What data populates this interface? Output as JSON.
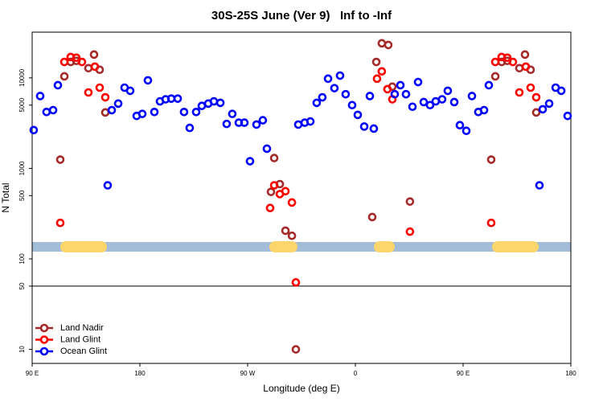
{
  "chart_data": {
    "type": "scatter",
    "title": "30S-25S June (Ver 9)   Inf to -Inf",
    "xlabel": "Longitude (deg E)",
    "ylabel": "N Total",
    "xlim": [
      90,
      540
    ],
    "xticks": [
      {
        "value": 90,
        "label": "90 E"
      },
      180,
      {
        "value": 270,
        "label": "90 W"
      },
      {
        "value": 360,
        "label": "0"
      },
      {
        "value": 450,
        "label": "90 E"
      },
      {
        "value": 540,
        "label": "180"
      }
    ],
    "ylim": [
      7,
      32000
    ],
    "log_y": true,
    "yticks": [
      10,
      50,
      100,
      500,
      1000,
      5000,
      10000
    ],
    "hline": 50,
    "legend": "bottom-left",
    "series": [
      {
        "name": "Land Nadir",
        "color": "#a52a2a",
        "x": [
          113.5,
          116.9,
          122.2,
          126.9,
          137,
          141.7,
          146.4,
          151.1,
          289.5,
          292.2,
          296.9,
          301.6,
          307,
          310.3,
          374.1,
          377.5,
          382.1,
          387.5,
          390.9,
          405.6,
          473.5,
          476.9,
          482.2,
          486.9,
          497,
          501.7,
          506.4,
          511.1
        ],
        "values": [
          1250,
          10400,
          15000,
          15400,
          12800,
          18100,
          12300,
          4150,
          550,
          1300,
          670,
          205,
          180,
          10,
          290,
          15000,
          24100,
          23100,
          8000,
          430,
          1250,
          10400,
          15000,
          15400,
          12800,
          18100,
          12300,
          4150
        ]
      },
      {
        "name": "Land Glint",
        "color": "#ff0000",
        "x": [
          113.5,
          116.9,
          122.2,
          126.9,
          131.6,
          137,
          142.4,
          146.4,
          151.1,
          288.8,
          292.2,
          296.9,
          301.6,
          307,
          310.3,
          378.1,
          382.1,
          386.8,
          390.9,
          405.6,
          473.5,
          476.9,
          482.2,
          486.9,
          491.6,
          497,
          502.4,
          506.4,
          511.1
        ],
        "values": [
          250,
          15000,
          17000,
          16700,
          15000,
          6900,
          13300,
          7800,
          6100,
          365,
          650,
          520,
          560,
          420,
          55,
          9800,
          11800,
          7500,
          5800,
          200,
          250,
          15000,
          17000,
          16700,
          15000,
          6900,
          13300,
          7800,
          6100
        ]
      },
      {
        "name": "Ocean Glint",
        "color": "#0000ff",
        "x": [
          91.3,
          96.7,
          102,
          107.5,
          111.5,
          153.1,
          156.5,
          161.9,
          167.2,
          171.9,
          177.3,
          182,
          186.7,
          192.1,
          196.8,
          201.5,
          206.2,
          211.6,
          216.9,
          221.6,
          227,
          231.7,
          237.1,
          241.8,
          247.2,
          252.5,
          257.2,
          262.6,
          267.3,
          272,
          277.4,
          282.7,
          286.1,
          312.3,
          317.7,
          322.4,
          327.7,
          332.4,
          337.2,
          342.5,
          347.2,
          351.9,
          357.3,
          362,
          367.4,
          372.1,
          375.4,
          392.9,
          397.6,
          402.3,
          407.7,
          412.4,
          417.1,
          422.4,
          427.1,
          432.5,
          437.2,
          442.6,
          447.3,
          452.7,
          457.4,
          462.7,
          467.5,
          471.5,
          513.8,
          516.5,
          521.9,
          527.3,
          532,
          537.3
        ],
        "values": [
          2650,
          6300,
          4200,
          4400,
          8300,
          650,
          4400,
          5200,
          7800,
          7200,
          3800,
          4000,
          9400,
          4200,
          5500,
          5800,
          5900,
          5900,
          4200,
          2800,
          4200,
          4900,
          5200,
          5500,
          5300,
          3100,
          4000,
          3200,
          3200,
          1200,
          3050,
          3400,
          1650,
          3050,
          3200,
          3300,
          5300,
          6100,
          9800,
          7700,
          10600,
          6600,
          5000,
          3900,
          2900,
          6300,
          2750,
          6600,
          8300,
          6600,
          4800,
          9000,
          5400,
          5000,
          5500,
          5800,
          7200,
          5400,
          3000,
          2600,
          6300,
          4200,
          4400,
          8300,
          650,
          4500,
          5200,
          7800,
          7200,
          3800
        ]
      }
    ]
  }
}
